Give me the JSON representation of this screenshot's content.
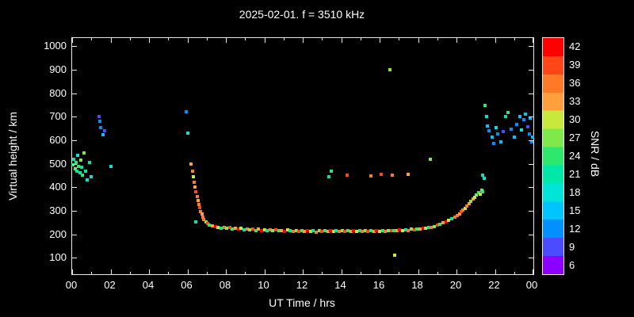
{
  "title": "2025-02-01. f = 3510 kHz",
  "chart_data": {
    "type": "scatter",
    "title": "2025-02-01. f = 3510 kHz",
    "xlabel": "UT Time / hrs",
    "ylabel": "Virtual height / km",
    "colorbar_label": "SNR / dB",
    "xlim": [
      0,
      24
    ],
    "ylim": [
      30,
      1035
    ],
    "x_major_ticks": [
      0,
      2,
      4,
      6,
      8,
      10,
      12,
      14,
      16,
      18,
      20,
      22,
      24
    ],
    "x_tick_labels": [
      "00",
      "02",
      "04",
      "06",
      "08",
      "10",
      "12",
      "14",
      "16",
      "18",
      "20",
      "22",
      "00"
    ],
    "x_minor_step": 1,
    "y_ticks": [
      100,
      200,
      300,
      400,
      500,
      600,
      700,
      800,
      900,
      1000
    ],
    "grid": false,
    "background": "#000000",
    "frame_color": "#e8e8e8",
    "colorbar": {
      "min": 4.5,
      "max": 43.5,
      "tick_values": [
        6,
        9,
        12,
        15,
        18,
        21,
        24,
        27,
        30,
        33,
        36,
        39,
        42
      ],
      "colors_low_to_high": [
        "#8b00ff",
        "#4b4bff",
        "#0090ff",
        "#00c3ff",
        "#00e5d8",
        "#00e8a8",
        "#2ee86e",
        "#7fe84a",
        "#c8e83c",
        "#ffa03c",
        "#ff7a28",
        "#ff4616",
        "#ff0000"
      ]
    },
    "points_format": "[ut_hour, virtual_height_km, snr_db]",
    "points": [
      [
        0.05,
        495,
        24
      ],
      [
        0.1,
        520,
        21
      ],
      [
        0.15,
        480,
        27
      ],
      [
        0.2,
        505,
        24
      ],
      [
        0.25,
        470,
        21
      ],
      [
        0.3,
        535,
        18
      ],
      [
        0.35,
        490,
        24
      ],
      [
        0.4,
        460,
        21
      ],
      [
        0.45,
        515,
        27
      ],
      [
        0.5,
        485,
        21
      ],
      [
        0.55,
        450,
        24
      ],
      [
        0.6,
        545,
        27
      ],
      [
        0.7,
        470,
        21
      ],
      [
        0.8,
        430,
        18
      ],
      [
        0.9,
        505,
        21
      ],
      [
        1.0,
        445,
        18
      ],
      [
        1.4,
        700,
        9
      ],
      [
        1.45,
        680,
        12
      ],
      [
        1.5,
        655,
        12
      ],
      [
        1.6,
        625,
        15
      ],
      [
        1.7,
        640,
        9
      ],
      [
        2.0,
        490,
        18
      ],
      [
        5.95,
        720,
        12
      ],
      [
        6.0,
        630,
        18
      ],
      [
        6.2,
        500,
        33
      ],
      [
        6.25,
        470,
        36
      ],
      [
        6.3,
        445,
        30
      ],
      [
        6.35,
        420,
        36
      ],
      [
        6.4,
        400,
        33
      ],
      [
        6.45,
        380,
        39
      ],
      [
        6.45,
        252,
        21
      ],
      [
        6.5,
        362,
        36
      ],
      [
        6.55,
        345,
        33
      ],
      [
        6.6,
        328,
        36
      ],
      [
        6.65,
        312,
        39
      ],
      [
        6.7,
        298,
        36
      ],
      [
        6.75,
        285,
        33
      ],
      [
        6.8,
        272,
        36
      ],
      [
        6.85,
        262,
        36
      ],
      [
        6.95,
        252,
        27
      ],
      [
        7.05,
        245,
        39
      ],
      [
        7.15,
        240,
        24
      ],
      [
        7.3,
        236,
        33
      ],
      [
        7.45,
        232,
        42
      ],
      [
        7.6,
        228,
        30
      ],
      [
        7.75,
        226,
        21
      ],
      [
        7.9,
        230,
        36
      ],
      [
        8.05,
        225,
        27
      ],
      [
        8.2,
        228,
        39
      ],
      [
        8.35,
        222,
        24
      ],
      [
        8.5,
        226,
        33
      ],
      [
        8.65,
        221,
        42
      ],
      [
        8.8,
        224,
        30
      ],
      [
        8.95,
        219,
        21
      ],
      [
        9.1,
        223,
        36
      ],
      [
        9.25,
        218,
        27
      ],
      [
        9.4,
        222,
        39
      ],
      [
        9.55,
        217,
        24
      ],
      [
        9.7,
        221,
        33
      ],
      [
        9.85,
        216,
        42
      ],
      [
        10.0,
        220,
        30
      ],
      [
        10.15,
        215,
        21
      ],
      [
        10.3,
        219,
        36
      ],
      [
        10.45,
        214,
        27
      ],
      [
        10.6,
        218,
        39
      ],
      [
        10.75,
        214,
        24
      ],
      [
        10.9,
        217,
        33
      ],
      [
        11.05,
        213,
        42
      ],
      [
        11.2,
        218,
        30
      ],
      [
        11.35,
        214,
        21
      ],
      [
        11.5,
        212,
        36
      ],
      [
        11.65,
        217,
        27
      ],
      [
        11.8,
        213,
        39
      ],
      [
        11.95,
        216,
        24
      ],
      [
        12.1,
        212,
        33
      ],
      [
        12.25,
        215,
        42
      ],
      [
        12.4,
        211,
        30
      ],
      [
        12.55,
        214,
        21
      ],
      [
        12.7,
        210,
        36
      ],
      [
        12.85,
        214,
        27
      ],
      [
        13.0,
        212,
        39
      ],
      [
        13.15,
        215,
        24
      ],
      [
        13.3,
        211,
        33
      ],
      [
        13.45,
        214,
        42
      ],
      [
        13.6,
        211,
        30
      ],
      [
        13.75,
        215,
        21
      ],
      [
        13.9,
        212,
        36
      ],
      [
        14.05,
        215,
        27
      ],
      [
        14.2,
        211,
        39
      ],
      [
        14.35,
        214,
        24
      ],
      [
        14.5,
        212,
        33
      ],
      [
        14.65,
        215,
        42
      ],
      [
        14.8,
        212,
        30
      ],
      [
        14.95,
        216,
        21
      ],
      [
        15.1,
        212,
        36
      ],
      [
        15.25,
        215,
        27
      ],
      [
        15.4,
        211,
        39
      ],
      [
        15.55,
        214,
        24
      ],
      [
        15.7,
        212,
        33
      ],
      [
        15.85,
        216,
        42
      ],
      [
        16.0,
        213,
        30
      ],
      [
        16.15,
        216,
        21
      ],
      [
        16.3,
        213,
        36
      ],
      [
        16.45,
        217,
        27
      ],
      [
        16.6,
        214,
        39
      ],
      [
        16.75,
        217,
        24
      ],
      [
        16.9,
        215,
        33
      ],
      [
        17.05,
        218,
        42
      ],
      [
        17.2,
        215,
        30
      ],
      [
        17.35,
        219,
        21
      ],
      [
        17.5,
        217,
        36
      ],
      [
        17.65,
        221,
        27
      ],
      [
        17.8,
        219,
        39
      ],
      [
        17.95,
        223,
        24
      ],
      [
        18.1,
        221,
        33
      ],
      [
        18.25,
        226,
        42
      ],
      [
        18.4,
        224,
        30
      ],
      [
        18.55,
        229,
        21
      ],
      [
        18.7,
        228,
        36
      ],
      [
        18.85,
        234,
        27
      ],
      [
        19.0,
        238,
        39
      ],
      [
        19.15,
        243,
        24
      ],
      [
        19.3,
        248,
        33
      ],
      [
        19.45,
        254,
        42
      ],
      [
        19.6,
        260,
        30
      ],
      [
        19.75,
        267,
        21
      ],
      [
        19.9,
        273,
        36
      ],
      [
        20.05,
        280,
        36
      ],
      [
        20.15,
        287,
        33
      ],
      [
        20.25,
        295,
        39
      ],
      [
        20.35,
        302,
        36
      ],
      [
        20.45,
        310,
        30
      ],
      [
        20.55,
        320,
        36
      ],
      [
        20.65,
        330,
        33
      ],
      [
        20.75,
        340,
        27
      ],
      [
        20.85,
        350,
        33
      ],
      [
        20.95,
        358,
        30
      ],
      [
        21.05,
        368,
        27
      ],
      [
        21.15,
        378,
        24
      ],
      [
        21.25,
        372,
        30
      ],
      [
        21.3,
        388,
        27
      ],
      [
        21.35,
        382,
        24
      ],
      [
        13.35,
        445,
        21
      ],
      [
        13.5,
        468,
        24
      ],
      [
        14.3,
        452,
        39
      ],
      [
        15.55,
        447,
        36
      ],
      [
        16.1,
        456,
        39
      ],
      [
        16.55,
        900,
        27
      ],
      [
        16.65,
        452,
        36
      ],
      [
        17.5,
        455,
        33
      ],
      [
        18.65,
        520,
        27
      ],
      [
        16.8,
        110,
        30
      ],
      [
        21.35,
        452,
        21
      ],
      [
        21.45,
        438,
        18
      ],
      [
        21.5,
        748,
        24
      ],
      [
        21.55,
        700,
        18
      ],
      [
        21.6,
        662,
        15
      ],
      [
        21.7,
        640,
        12
      ],
      [
        21.85,
        612,
        15
      ],
      [
        21.95,
        585,
        12
      ],
      [
        22.05,
        655,
        18
      ],
      [
        22.15,
        628,
        12
      ],
      [
        22.3,
        592,
        15
      ],
      [
        22.45,
        638,
        9
      ],
      [
        22.55,
        700,
        21
      ],
      [
        22.7,
        718,
        24
      ],
      [
        22.85,
        648,
        12
      ],
      [
        23.0,
        612,
        15
      ],
      [
        23.15,
        668,
        12
      ],
      [
        23.3,
        700,
        15
      ],
      [
        23.4,
        645,
        18
      ],
      [
        23.5,
        688,
        12
      ],
      [
        23.6,
        712,
        15
      ],
      [
        23.7,
        658,
        9
      ],
      [
        23.8,
        628,
        12
      ],
      [
        23.85,
        695,
        15
      ],
      [
        23.9,
        592,
        12
      ],
      [
        23.95,
        612,
        15
      ]
    ]
  }
}
